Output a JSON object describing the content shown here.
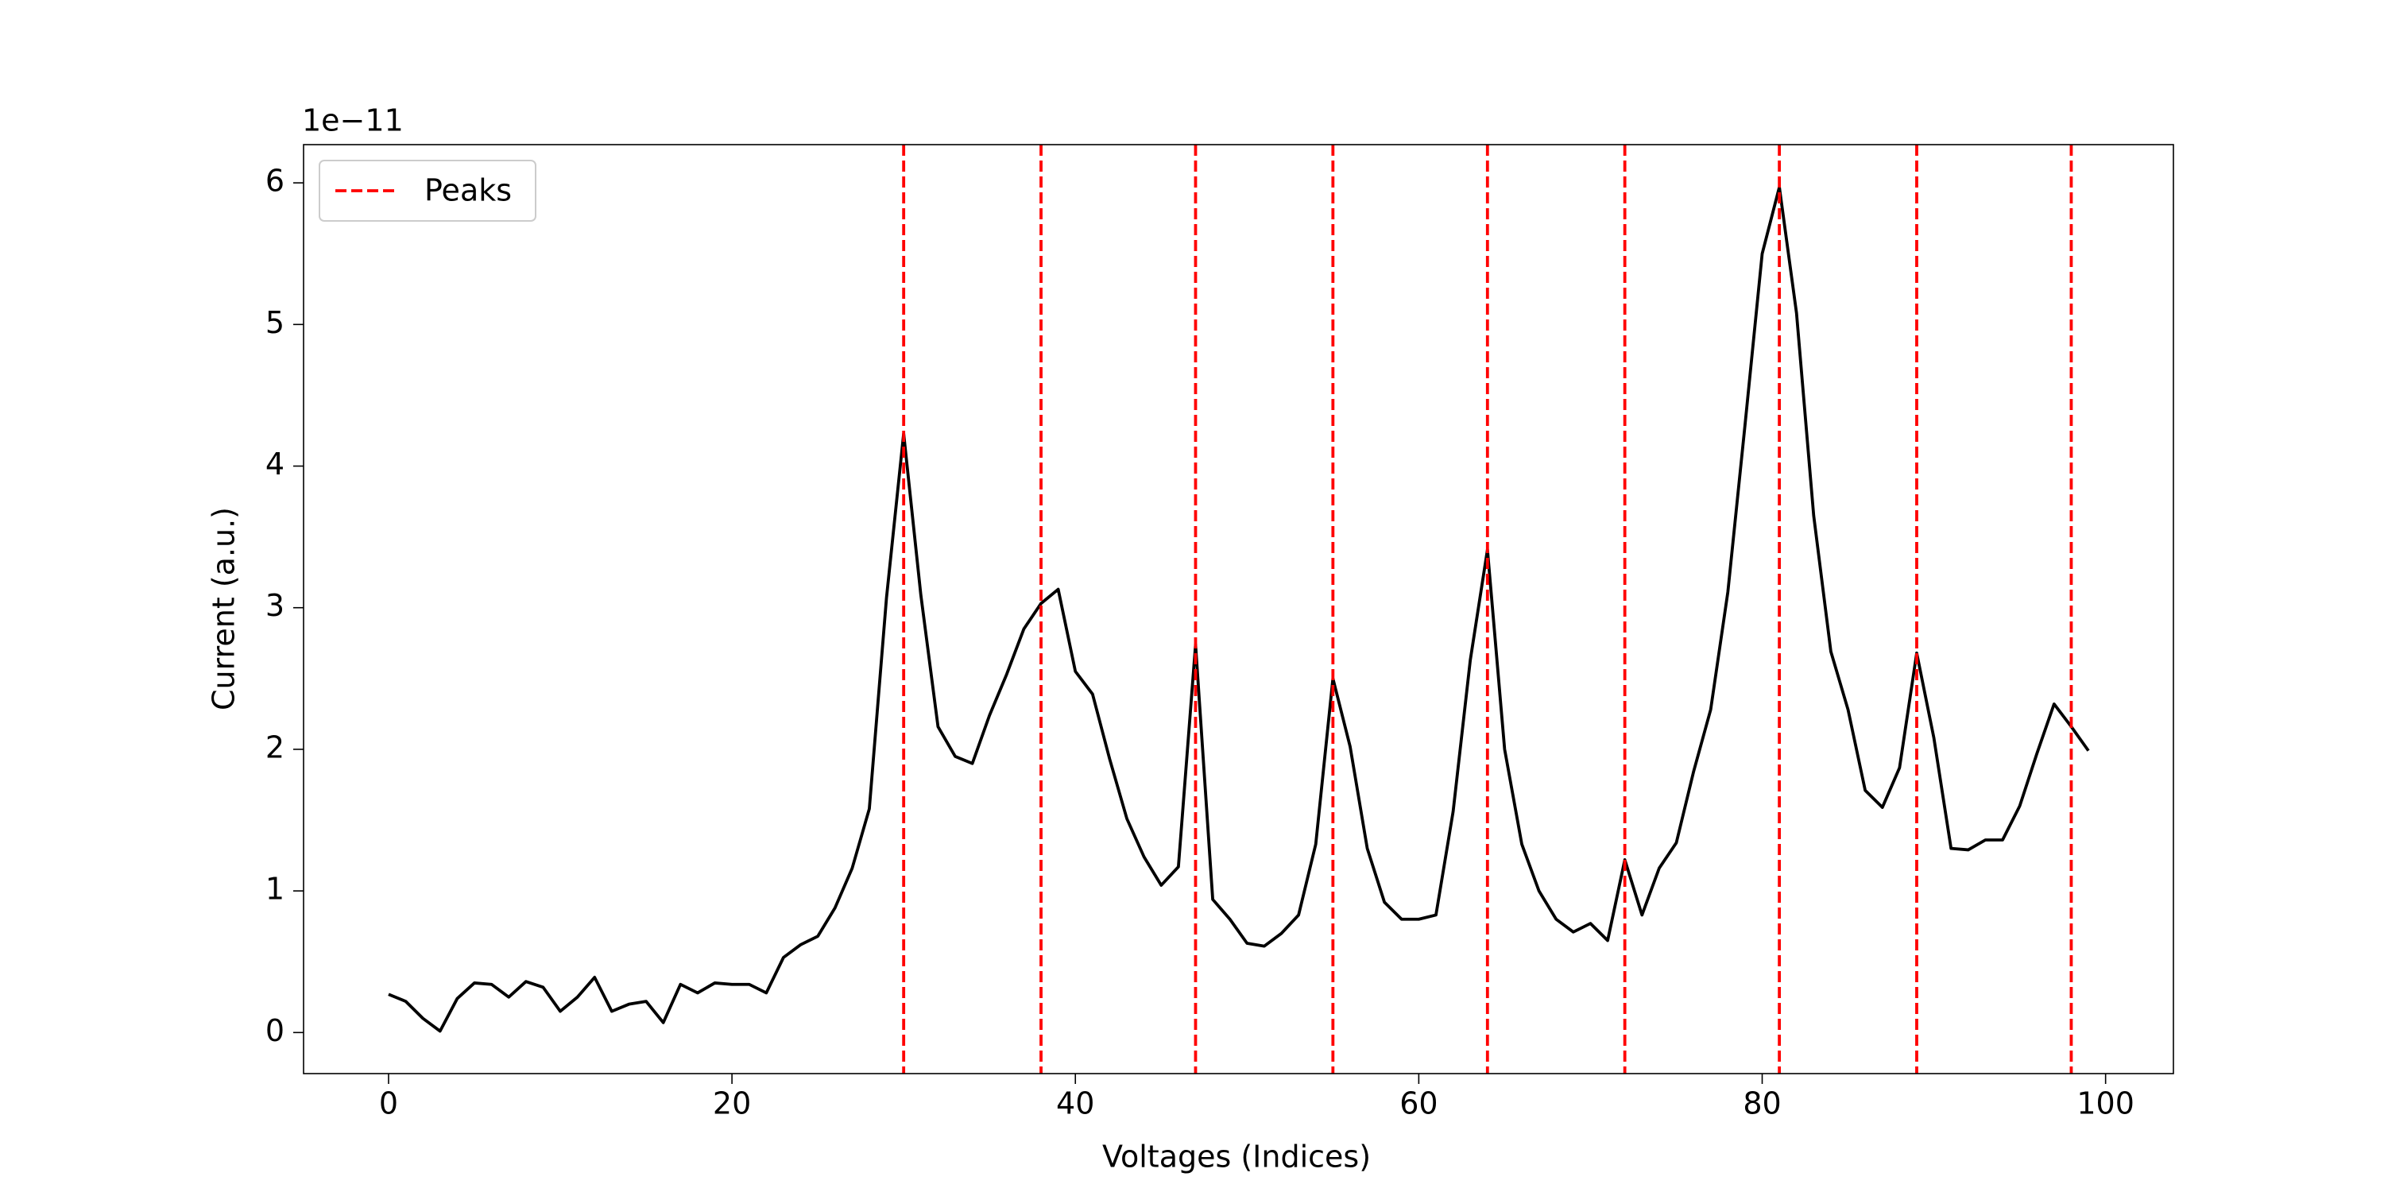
{
  "chart_data": {
    "type": "line",
    "xlabel": "Voltages (Indices)",
    "ylabel": "Current (a.u.)",
    "y_offset_text": "1e−11",
    "x": [
      0,
      1,
      2,
      3,
      4,
      5,
      6,
      7,
      8,
      9,
      10,
      11,
      12,
      13,
      14,
      15,
      16,
      17,
      18,
      19,
      20,
      21,
      22,
      23,
      24,
      25,
      26,
      27,
      28,
      29,
      30,
      31,
      32,
      33,
      34,
      35,
      36,
      37,
      38,
      39,
      40,
      41,
      42,
      43,
      44,
      45,
      46,
      47,
      48,
      49,
      50,
      51,
      52,
      53,
      54,
      55,
      56,
      57,
      58,
      59,
      60,
      61,
      62,
      63,
      64,
      65,
      66,
      67,
      68,
      69,
      70,
      71,
      72,
      73,
      74,
      75,
      76,
      77,
      78,
      79,
      80,
      81,
      82,
      83,
      84,
      85,
      86,
      87,
      88,
      89,
      90,
      91,
      92,
      93,
      94,
      95,
      96,
      97,
      98,
      99
    ],
    "values": [
      0.27,
      0.22,
      0.1,
      0.01,
      0.24,
      0.35,
      0.34,
      0.25,
      0.36,
      0.32,
      0.15,
      0.25,
      0.39,
      0.15,
      0.2,
      0.22,
      0.07,
      0.34,
      0.28,
      0.35,
      0.34,
      0.34,
      0.28,
      0.53,
      0.62,
      0.68,
      0.88,
      1.16,
      1.58,
      3.07,
      4.23,
      3.09,
      2.16,
      1.95,
      1.9,
      2.24,
      2.53,
      2.85,
      3.03,
      3.13,
      2.55,
      2.39,
      1.93,
      1.51,
      1.24,
      1.04,
      1.17,
      2.74,
      0.94,
      0.8,
      0.63,
      0.61,
      0.7,
      0.83,
      1.33,
      2.5,
      2.02,
      1.3,
      0.92,
      0.8,
      0.8,
      0.83,
      1.56,
      2.63,
      3.41,
      2.0,
      1.33,
      1.0,
      0.8,
      0.71,
      0.77,
      0.65,
      1.22,
      0.83,
      1.16,
      1.34,
      1.84,
      2.28,
      3.11,
      4.29,
      5.5,
      5.97,
      5.08,
      3.65,
      2.69,
      2.28,
      1.71,
      1.59,
      1.87,
      2.68,
      2.08,
      1.3,
      1.29,
      1.36,
      1.36,
      1.6,
      1.97,
      2.32,
      2.16,
      1.99
    ],
    "color": "#000000",
    "vlines": {
      "name": "Peaks",
      "x": [
        30,
        38,
        47,
        55,
        64,
        72,
        81,
        89,
        98
      ],
      "color": "#ff0000",
      "style": "dashed"
    },
    "xlim": [
      -4.95,
      103.95
    ],
    "ylim": [
      -0.29,
      6.27
    ],
    "xticks": [
      0,
      20,
      40,
      60,
      80,
      100
    ],
    "yticks": [
      0,
      1,
      2,
      3,
      4,
      5,
      6
    ],
    "legend": "upper left"
  }
}
